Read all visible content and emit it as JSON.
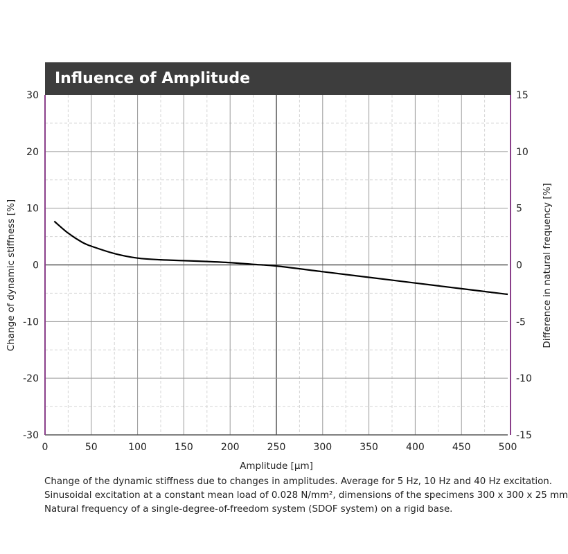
{
  "chart_data": {
    "type": "line",
    "title": "Influence of Amplitude",
    "xlabel": "Amplitude [µm]",
    "ylabel": "Change of dynamic stiffness [%]",
    "y2label": "Difference in natural frequency [%]",
    "xlim": [
      0,
      500
    ],
    "ylim": [
      -30,
      30
    ],
    "y2lim": [
      -15,
      15
    ],
    "xticks": [
      0,
      50,
      100,
      150,
      200,
      250,
      300,
      350,
      400,
      450,
      500
    ],
    "yticks": [
      30,
      20,
      10,
      0,
      -10,
      -20,
      -30
    ],
    "y2ticks": [
      15,
      10,
      5,
      0,
      -5,
      -10,
      -15
    ],
    "grid": true,
    "series": [
      {
        "name": "Change of dynamic stiffness",
        "x": [
          10,
          25,
          40,
          50,
          75,
          100,
          125,
          150,
          175,
          200,
          225,
          250,
          300,
          350,
          400,
          450,
          500
        ],
        "y": [
          7.7,
          5.6,
          4.0,
          3.3,
          2.0,
          1.2,
          0.9,
          0.75,
          0.6,
          0.4,
          0.1,
          -0.2,
          -1.2,
          -2.2,
          -3.2,
          -4.2,
          -5.2
        ]
      }
    ],
    "colors": {
      "line": "#000000",
      "frame": "#8a3f8a",
      "title_bg": "#3d3d3d"
    }
  },
  "caption": [
    "Change of the dynamic stiffness due to changes in amplitudes. Average for 5 Hz, 10 Hz and 40 Hz excitation.",
    "Sinusoidal excitation at a constant mean load of 0.028 N/mm², dimensions of the specimens 300 x 300 x 25 mm",
    "Natural frequency of a single-degree-of-freedom system (SDOF system) on a rigid base."
  ]
}
